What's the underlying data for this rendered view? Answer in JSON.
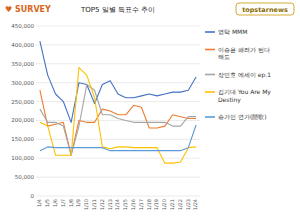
{
  "chart_data": {
    "type": "line",
    "title": "TOP5 일별 득표수 추이",
    "annotations": [
      "♥ SURVEY",
      "topstarnews"
    ],
    "categories": [
      "1/4",
      "1/5",
      "1/6",
      "1/7",
      "1/8",
      "1/9",
      "1/10",
      "1/11",
      "1/12",
      "1/13",
      "1/14",
      "1/15",
      "1/16",
      "1/17",
      "1/18",
      "1/19",
      "1/20",
      "1/21",
      "1/22",
      "1/23",
      "1/24"
    ],
    "series": [
      {
        "name": "영탁 MMM",
        "color": "#4472C4",
        "values": [
          410000,
          320000,
          270000,
          250000,
          195000,
          300000,
          295000,
          245000,
          295000,
          305000,
          270000,
          260000,
          260000,
          265000,
          270000,
          265000,
          270000,
          275000,
          275000,
          280000,
          315000
        ]
      },
      {
        "name": "이승윤 패려가 된다\n해도",
        "color": "#ED7D31",
        "values": [
          280000,
          185000,
          190000,
          195000,
          108000,
          200000,
          195000,
          195000,
          230000,
          225000,
          215000,
          215000,
          240000,
          235000,
          180000,
          180000,
          185000,
          215000,
          210000,
          205000,
          205000
        ]
      },
      {
        "name": "장민호 에세이 ep.1",
        "color": "#A5A5A5",
        "values": [
          230000,
          195000,
          195000,
          185000,
          108000,
          185000,
          295000,
          280000,
          215000,
          215000,
          205000,
          200000,
          195000,
          195000,
          195000,
          195000,
          195000,
          185000,
          185000,
          210000,
          210000
        ]
      },
      {
        "name": "김기대 You Are My\nDestiny",
        "color": "#FFC000",
        "values": [
          195000,
          185000,
          108000,
          108000,
          108000,
          340000,
          320000,
          260000,
          130000,
          125000,
          130000,
          130000,
          128000,
          128000,
          128000,
          128000,
          87000,
          87000,
          90000,
          128000,
          130000
        ]
      },
      {
        "name": "송가인 연가(戀歌)",
        "color": "#5B9BD5",
        "values": [
          120000,
          130000,
          128000,
          128000,
          128000,
          128000,
          128000,
          128000,
          128000,
          120000,
          120000,
          120000,
          120000,
          120000,
          120000,
          120000,
          120000,
          120000,
          120000,
          128000,
          188000
        ]
      }
    ],
    "ylim": [
      0,
      450000
    ],
    "yticks": [
      0,
      {
        "value": 50000,
        "label": "50,000"
      },
      {
        "value": 100000,
        "label": "100,000"
      },
      {
        "value": 150000,
        "label": "150,000"
      },
      {
        "value": 200000,
        "label": "200,000"
      },
      {
        "value": 250000,
        "label": "250,000"
      },
      {
        "value": 300000,
        "label": "300,000"
      },
      {
        "value": 350000,
        "label": "350,000"
      },
      {
        "value": 400000,
        "label": "400,000"
      },
      {
        "value": 450000,
        "label": "450,000"
      }
    ],
    "grid": true,
    "legend": "right"
  }
}
